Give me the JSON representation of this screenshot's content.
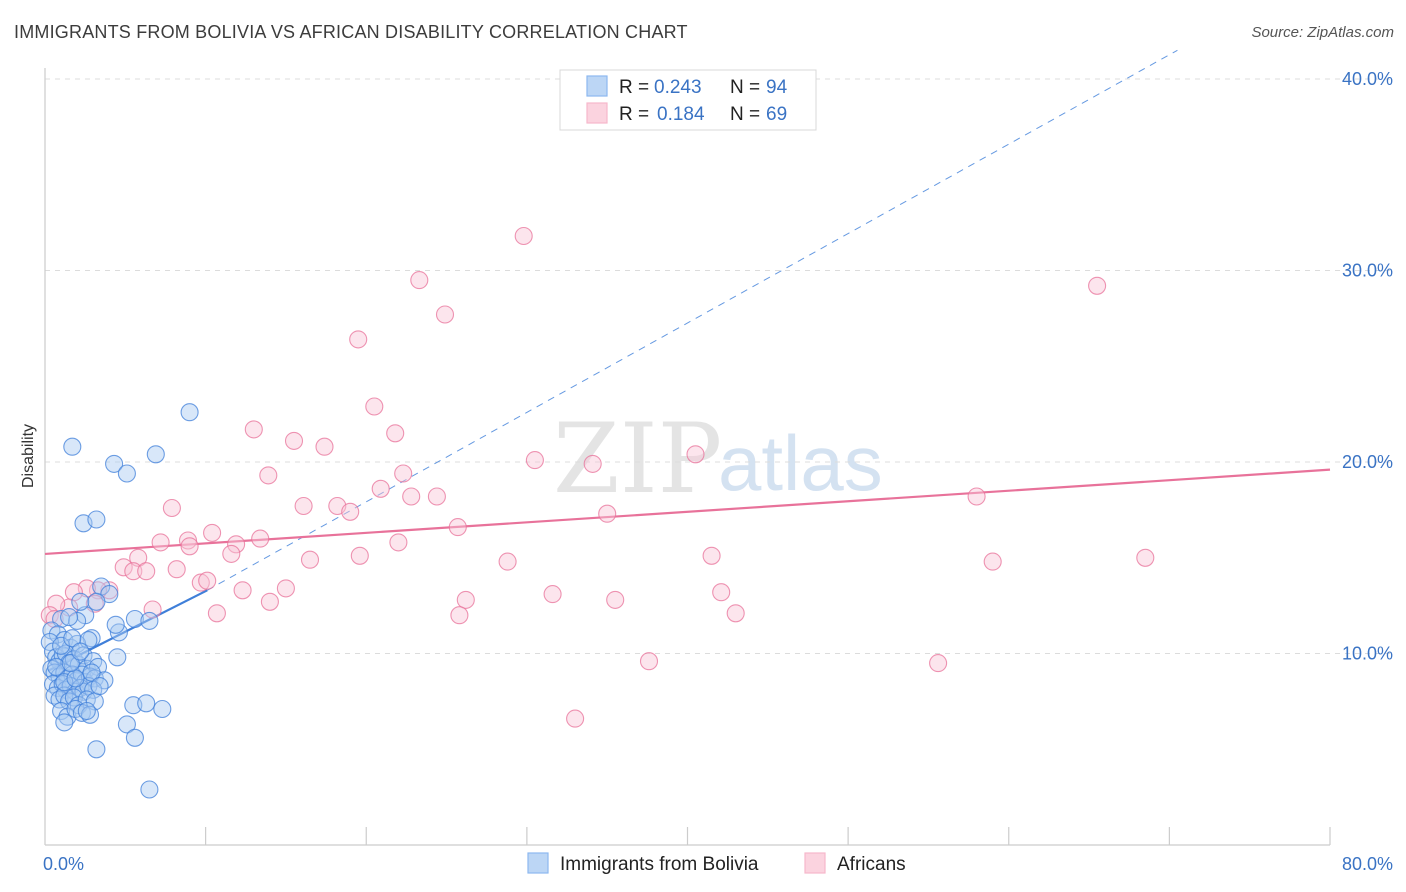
{
  "header": {
    "title": "IMMIGRANTS FROM BOLIVIA VS AFRICAN DISABILITY CORRELATION CHART",
    "source": "Source: ZipAtlas.com"
  },
  "watermark": {
    "zip": "ZIP",
    "atlas": "atlas"
  },
  "legend": {
    "r_label": "R =",
    "n_label": "N =",
    "rows": [
      {
        "r": "0.243",
        "n": "94",
        "color": "#8db8ef"
      },
      {
        "r": "0.184",
        "n": "69",
        "color": "#f6b8cb"
      }
    ]
  },
  "bottom_legend": [
    {
      "label": "Immigrants from Bolivia",
      "color": "#8db8ef"
    },
    {
      "label": "Africans",
      "color": "#f6b8cb"
    }
  ],
  "chart_data": {
    "type": "scatter",
    "ylabel": "Disability",
    "xlim": [
      0,
      80
    ],
    "ylim": [
      0,
      40
    ],
    "x_tick_labels": [
      {
        "value": 0,
        "label": "0.0%"
      },
      {
        "value": 80,
        "label": "80.0%"
      }
    ],
    "y_tick_labels": [
      {
        "value": 10,
        "label": "10.0%"
      },
      {
        "value": 20,
        "label": "20.0%"
      },
      {
        "value": 30,
        "label": "30.0%"
      },
      {
        "value": 40,
        "label": "40.0%"
      }
    ],
    "grid": "horizontal dashed",
    "legend_position": "top-center",
    "series": [
      {
        "name": "Immigrants from Bolivia",
        "color": "#3f7fd9",
        "fill": "#a9c9f1",
        "trend": {
          "solid": [
            [
              0.2,
              9.1
            ],
            [
              10.1,
              13.3
            ]
          ],
          "dashed": [
            [
              10.1,
              13.3
            ],
            [
              70.5,
              41.5
            ]
          ]
        },
        "points": [
          [
            1.0,
            11.8
          ],
          [
            2.5,
            12.0
          ],
          [
            5.6,
            11.8
          ],
          [
            2.2,
            12.7
          ],
          [
            3.5,
            13.5
          ],
          [
            4.0,
            13.1
          ],
          [
            2.9,
            10.8
          ],
          [
            0.4,
            11.2
          ],
          [
            0.8,
            11.0
          ],
          [
            1.2,
            10.7
          ],
          [
            1.6,
            10.3
          ],
          [
            2.0,
            10.5
          ],
          [
            2.7,
            10.7
          ],
          [
            4.6,
            11.1
          ],
          [
            0.3,
            10.6
          ],
          [
            0.5,
            10.1
          ],
          [
            0.7,
            9.8
          ],
          [
            0.9,
            9.6
          ],
          [
            1.1,
            9.9
          ],
          [
            1.3,
            10.0
          ],
          [
            1.5,
            9.5
          ],
          [
            1.8,
            9.7
          ],
          [
            2.1,
            9.4
          ],
          [
            2.4,
            9.9
          ],
          [
            2.6,
            9.2
          ],
          [
            3.0,
            9.6
          ],
          [
            4.5,
            9.8
          ],
          [
            3.3,
            9.3
          ],
          [
            0.4,
            9.2
          ],
          [
            0.6,
            9.0
          ],
          [
            0.9,
            8.8
          ],
          [
            1.2,
            9.0
          ],
          [
            1.4,
            8.7
          ],
          [
            1.7,
            8.9
          ],
          [
            2.0,
            8.6
          ],
          [
            2.3,
            8.9
          ],
          [
            2.5,
            8.5
          ],
          [
            2.8,
            8.8
          ],
          [
            3.1,
            8.7
          ],
          [
            3.7,
            8.6
          ],
          [
            0.5,
            8.4
          ],
          [
            0.8,
            8.2
          ],
          [
            1.1,
            8.4
          ],
          [
            1.3,
            8.1
          ],
          [
            1.6,
            8.3
          ],
          [
            1.9,
            8.0
          ],
          [
            2.2,
            8.2
          ],
          [
            2.4,
            8.0
          ],
          [
            2.7,
            8.3
          ],
          [
            3.0,
            8.1
          ],
          [
            0.6,
            7.8
          ],
          [
            0.9,
            7.6
          ],
          [
            1.2,
            7.8
          ],
          [
            1.5,
            7.5
          ],
          [
            1.8,
            7.7
          ],
          [
            2.1,
            7.3
          ],
          [
            2.6,
            7.6
          ],
          [
            3.1,
            7.5
          ],
          [
            1.0,
            7.0
          ],
          [
            1.4,
            6.7
          ],
          [
            1.9,
            7.1
          ],
          [
            2.3,
            6.9
          ],
          [
            2.8,
            6.8
          ],
          [
            1.2,
            6.4
          ],
          [
            2.6,
            7.0
          ],
          [
            5.1,
            6.3
          ],
          [
            5.5,
            7.3
          ],
          [
            6.3,
            7.4
          ],
          [
            7.3,
            7.1
          ],
          [
            5.6,
            5.6
          ],
          [
            3.2,
            5.0
          ],
          [
            6.5,
            2.9
          ],
          [
            1.2,
            8.5
          ],
          [
            0.7,
            9.3
          ],
          [
            1.0,
            10.4
          ],
          [
            2.0,
            11.7
          ],
          [
            1.5,
            11.9
          ],
          [
            3.2,
            12.7
          ],
          [
            4.4,
            11.5
          ],
          [
            6.5,
            11.7
          ],
          [
            1.9,
            8.7
          ],
          [
            2.9,
            9.0
          ],
          [
            3.4,
            8.3
          ],
          [
            1.7,
            10.8
          ],
          [
            2.4,
            16.8
          ],
          [
            3.2,
            17.0
          ],
          [
            4.3,
            19.9
          ],
          [
            5.1,
            19.4
          ],
          [
            1.7,
            20.8
          ],
          [
            6.9,
            20.4
          ],
          [
            9.0,
            22.6
          ],
          [
            1.6,
            9.5
          ],
          [
            2.2,
            10.1
          ]
        ]
      },
      {
        "name": "Africans",
        "color": "#e8729a",
        "fill": "#f9c6d6",
        "trend": {
          "solid": [
            [
              0.0,
              15.2
            ],
            [
              80.0,
              19.6
            ]
          ]
        },
        "points": [
          [
            29.8,
            31.8
          ],
          [
            23.3,
            29.5
          ],
          [
            24.9,
            27.7
          ],
          [
            19.5,
            26.4
          ],
          [
            20.5,
            22.9
          ],
          [
            13.0,
            21.7
          ],
          [
            21.8,
            21.5
          ],
          [
            15.5,
            21.1
          ],
          [
            17.4,
            20.8
          ],
          [
            30.5,
            20.1
          ],
          [
            34.1,
            19.9
          ],
          [
            40.5,
            20.4
          ],
          [
            13.9,
            19.3
          ],
          [
            22.3,
            19.4
          ],
          [
            20.9,
            18.6
          ],
          [
            22.8,
            18.2
          ],
          [
            24.4,
            18.2
          ],
          [
            16.1,
            17.7
          ],
          [
            18.2,
            17.7
          ],
          [
            7.9,
            17.6
          ],
          [
            19.0,
            17.4
          ],
          [
            35.0,
            17.3
          ],
          [
            58.0,
            18.2
          ],
          [
            25.7,
            16.6
          ],
          [
            10.4,
            16.3
          ],
          [
            13.4,
            16.0
          ],
          [
            8.9,
            15.9
          ],
          [
            11.9,
            15.7
          ],
          [
            7.2,
            15.8
          ],
          [
            9.0,
            15.6
          ],
          [
            11.6,
            15.2
          ],
          [
            16.5,
            14.9
          ],
          [
            19.6,
            15.1
          ],
          [
            22.0,
            15.8
          ],
          [
            5.8,
            15.0
          ],
          [
            28.8,
            14.8
          ],
          [
            41.5,
            15.1
          ],
          [
            59.0,
            14.8
          ],
          [
            68.5,
            15.0
          ],
          [
            4.9,
            14.5
          ],
          [
            5.5,
            14.3
          ],
          [
            6.3,
            14.3
          ],
          [
            8.2,
            14.4
          ],
          [
            9.7,
            13.7
          ],
          [
            10.1,
            13.8
          ],
          [
            4.0,
            13.3
          ],
          [
            3.3,
            13.3
          ],
          [
            2.6,
            13.4
          ],
          [
            1.8,
            13.2
          ],
          [
            15.0,
            13.4
          ],
          [
            12.3,
            13.3
          ],
          [
            14.0,
            12.7
          ],
          [
            26.2,
            12.8
          ],
          [
            31.6,
            13.1
          ],
          [
            35.5,
            12.8
          ],
          [
            42.1,
            13.2
          ],
          [
            43.0,
            12.1
          ],
          [
            25.8,
            12.0
          ],
          [
            10.7,
            12.1
          ],
          [
            6.7,
            12.3
          ],
          [
            3.1,
            12.6
          ],
          [
            1.5,
            12.4
          ],
          [
            0.7,
            12.6
          ],
          [
            0.3,
            12.0
          ],
          [
            0.6,
            11.8
          ],
          [
            37.6,
            9.6
          ],
          [
            55.6,
            9.5
          ],
          [
            33.0,
            6.6
          ],
          [
            65.5,
            29.2
          ]
        ]
      }
    ]
  }
}
